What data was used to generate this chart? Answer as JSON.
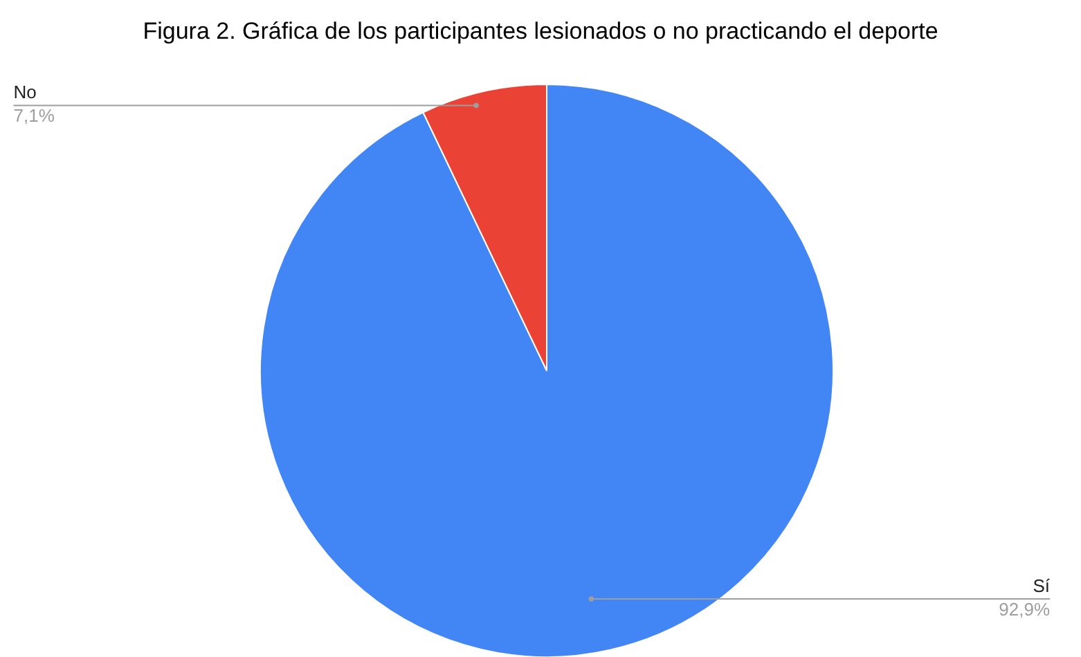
{
  "chart_data": {
    "type": "pie",
    "title": "Figura 2. Gráfica de los participantes lesionados o no practicando el deporte",
    "categories": [
      "Sí",
      "No"
    ],
    "values": [
      92.9,
      7.1
    ],
    "colors": [
      "#4285f4",
      "#ea4335"
    ],
    "value_labels": [
      "92,9%",
      "7,1%"
    ],
    "legend": false
  }
}
